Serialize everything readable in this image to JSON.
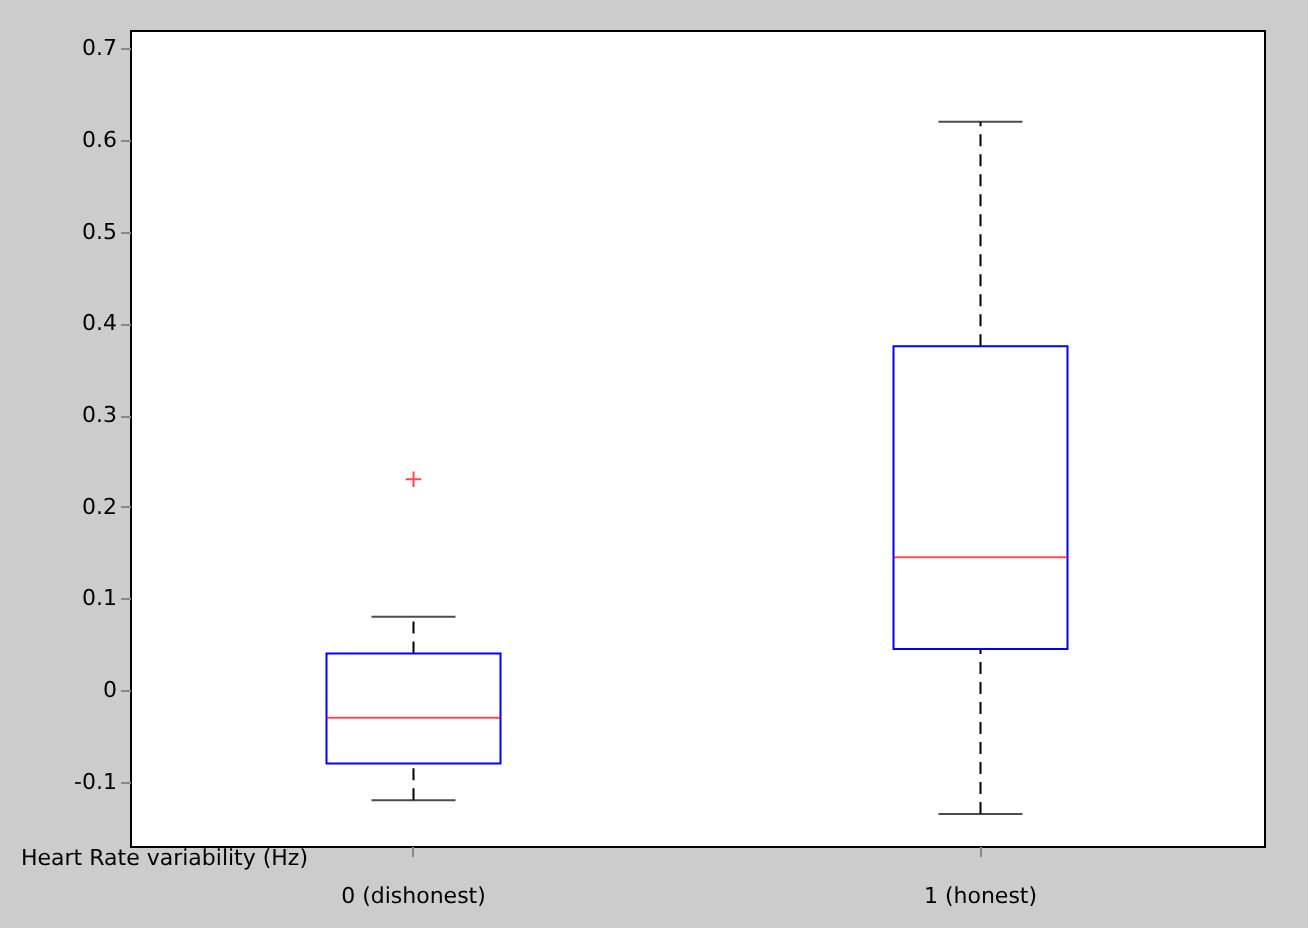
{
  "chart_data": {
    "type": "box",
    "ylabel": "Heart Rate variability (Hz)",
    "categories": [
      "0 (dishonest)",
      "1 (honest)"
    ],
    "ylim": [
      -0.17,
      0.72
    ],
    "yticks": [
      -0.1,
      0,
      0.1,
      0.2,
      0.3,
      0.4,
      0.5,
      0.6,
      0.7
    ],
    "grid": false,
    "line_style": "dashed",
    "series": [
      {
        "color": "#0000ff",
        "boxes": [
          {
            "low": -0.12,
            "q1": -0.08,
            "median": -0.03,
            "q3": 0.04,
            "high": 0.08,
            "outliers": [
              0.23
            ]
          },
          {
            "low": -0.135,
            "q1": 0.045,
            "median": 0.145,
            "q3": 0.375,
            "high": 0.62
          }
        ]
      }
    ]
  }
}
